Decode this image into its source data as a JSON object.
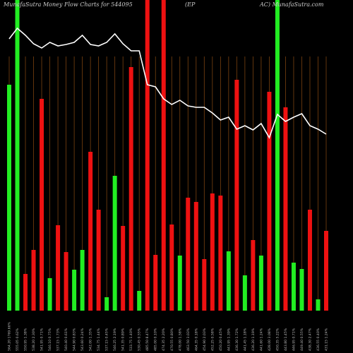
{
  "chart_data": {
    "type": "bar",
    "title_parts": [
      "MunafaSutra  Money Flow  Charts for 544095",
      "(EP",
      "AC) MunafaSutra.com"
    ],
    "categories": [
      "564.20 1769.66%",
      "555.05 0.62%",
      "550.95 1.38%",
      "538.20 2.30%",
      "541.95 0.71%",
      "546.10 0.75%",
      "537.15 1.73%",
      "540.40 0.61%",
      "544.90 0.83%",
      "543.60 0.24%",
      "542.00 1.35%",
      "534.75 1.44%",
      "537.15 0.45%",
      "546.25 2.19%",
      "541.35 0.89%",
      "533.75 1.40%",
      "530.45 0.55%",
      "485.50 8.47%",
      "485.00 0.10%",
      "474.35 2.20%",
      "470.55 0.80%",
      "478.00 1.58%",
      "463.50 3.03%",
      "464.35 0.18%",
      "454.90 2.03%",
      "452.25 0.58%",
      "450.20 0.45%",
      "443.95 1.39%",
      "436.30 1.72%",
      "441.45 1.18%",
      "436.20 1.19%",
      "441.60 1.24%",
      "428.00 3.08%",
      "450.35 5.22%",
      "443.80 1.45%",
      "446.95 0.71%",
      "449.40 0.55%",
      "438.30 2.47%",
      "436.55 0.40%",
      "431.15 1.24%"
    ],
    "series": [
      {
        "type": "bar",
        "colors": [
          "#22ee22",
          "#22ee22",
          "#ee1111",
          "#ee1111",
          "#ee1111",
          "#22ee22",
          "#ee1111",
          "#ee1111",
          "#22ee22",
          "#22ee22",
          "#ee1111",
          "#ee1111",
          "#22ee22",
          "#22ee22",
          "#ee1111",
          "#ee1111",
          "#22ee22",
          "#ee1111",
          "#ee1111",
          "#ee1111",
          "#ee1111",
          "#22ee22",
          "#ee1111",
          "#ee1111",
          "#ee1111",
          "#ee1111",
          "#ee1111",
          "#22ee22",
          "#ee1111",
          "#22ee22",
          "#ee1111",
          "#22ee22",
          "#ee1111",
          "#22ee22",
          "#ee1111",
          "#22ee22",
          "#22ee22",
          "#ee1111",
          "#22ee22",
          "#ee1111"
        ],
        "values": [
          320,
          440,
          52,
          86,
          300,
          46,
          121,
          83,
          58,
          86,
          225,
          143,
          19,
          191,
          120,
          345,
          28,
          440,
          79,
          440,
          122,
          78,
          160,
          154,
          73,
          166,
          163,
          84,
          327,
          50,
          100,
          78,
          310,
          440,
          288,
          68,
          59,
          143,
          16,
          113
        ]
      },
      {
        "type": "line",
        "color": "#ffffff",
        "values": [
          385,
          400,
          390,
          378,
          372,
          380,
          375,
          377,
          380,
          390,
          377,
          375,
          380,
          392,
          378,
          368,
          368,
          320,
          317,
          300,
          292,
          298,
          290,
          288,
          288,
          280,
          270,
          274,
          257,
          262,
          256,
          265,
          245,
          278,
          268,
          274,
          279,
          262,
          257,
          250
        ]
      }
    ],
    "ylim": [
      0,
      440
    ],
    "grid": true,
    "grid_color": "#7a4210"
  }
}
